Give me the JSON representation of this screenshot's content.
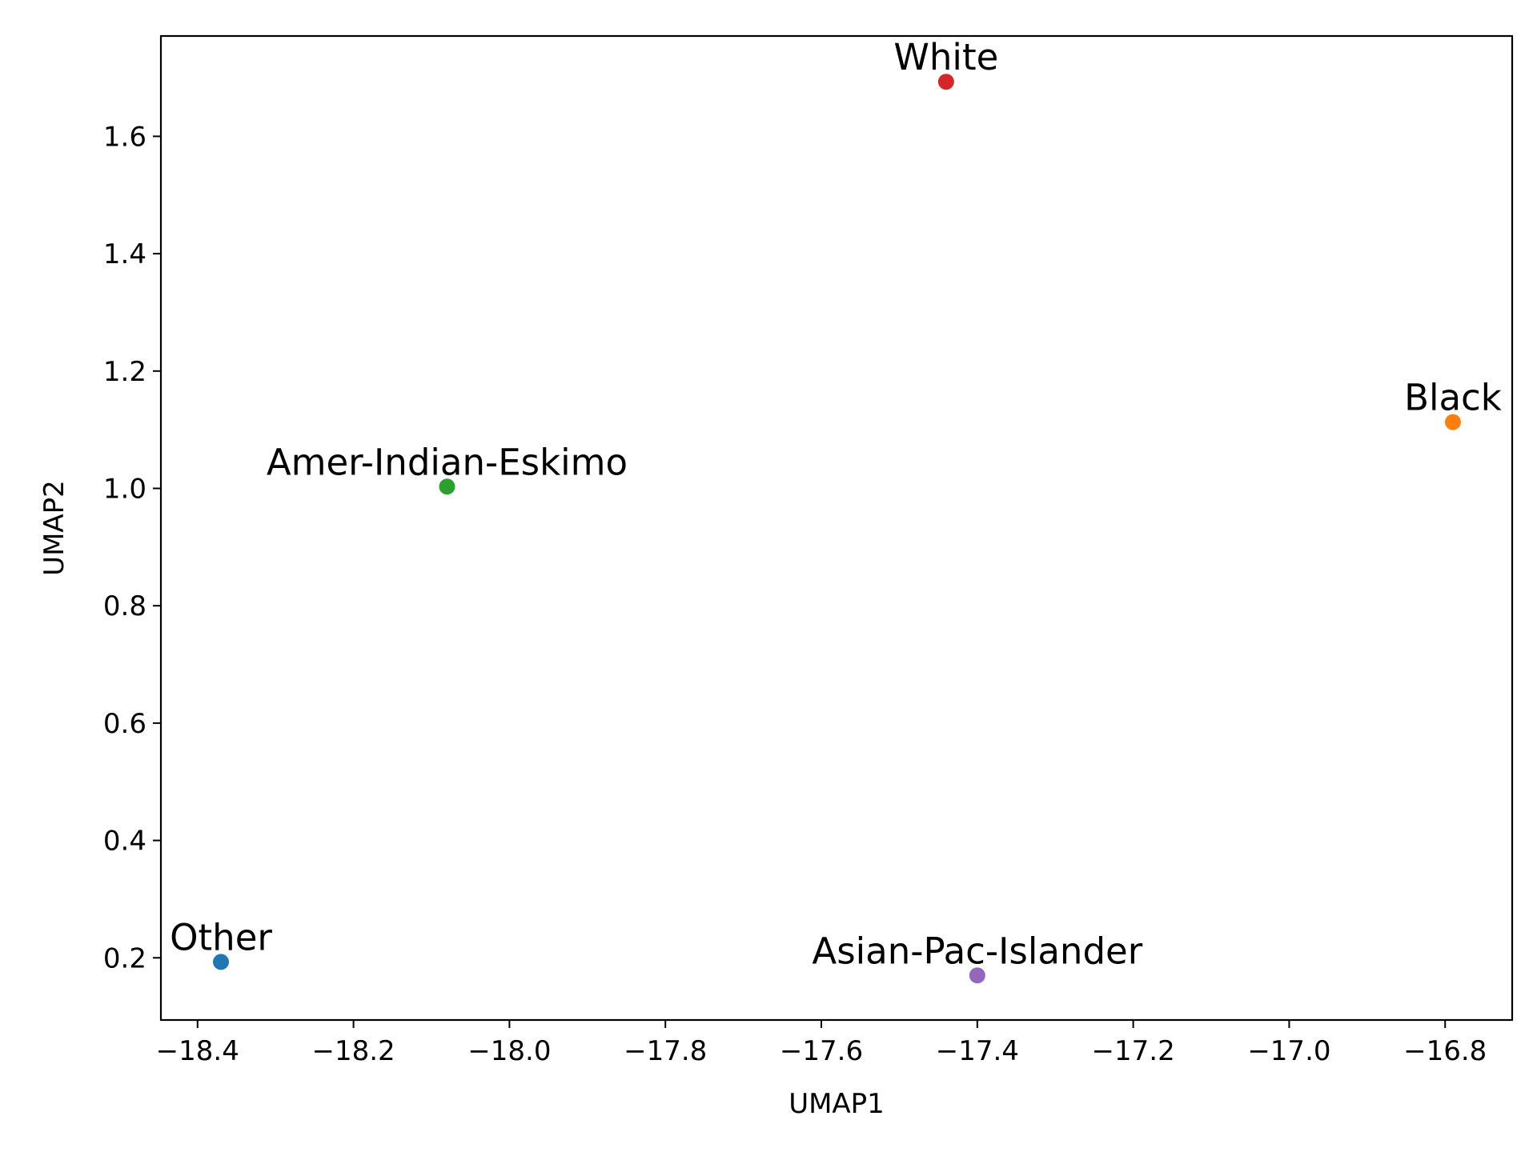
{
  "chart_data": {
    "type": "scatter",
    "title": "",
    "xlabel": "UMAP1",
    "ylabel": "UMAP2",
    "xlim": [
      -18.447,
      -16.714
    ],
    "ylim": [
      0.094,
      1.771
    ],
    "xticks": [
      -18.4,
      -18.2,
      -18.0,
      -17.8,
      -17.6,
      -17.4,
      -17.2,
      -17.0,
      -16.8
    ],
    "xtick_labels": [
      "−18.4",
      "−18.2",
      "−18.0",
      "−17.8",
      "−17.6",
      "−17.4",
      "−17.2",
      "−17.0",
      "−16.8"
    ],
    "yticks": [
      0.2,
      0.4,
      0.6,
      0.8,
      1.0,
      1.2,
      1.4,
      1.6
    ],
    "ytick_labels": [
      "0.2",
      "0.4",
      "0.6",
      "0.8",
      "1.0",
      "1.2",
      "1.4",
      "1.6"
    ],
    "grid": false,
    "points": [
      {
        "label": "White",
        "x": -17.44,
        "y": 1.693,
        "color": "#d62728"
      },
      {
        "label": "Black",
        "x": -16.79,
        "y": 1.113,
        "color": "#ff7f0e"
      },
      {
        "label": "Amer-Indian-Eskimo",
        "x": -18.08,
        "y": 1.003,
        "color": "#2ca02c"
      },
      {
        "label": "Other",
        "x": -18.37,
        "y": 0.193,
        "color": "#1f77b4"
      },
      {
        "label": "Asian-Pac-Islander",
        "x": -17.4,
        "y": 0.17,
        "color": "#9467bd"
      }
    ]
  }
}
